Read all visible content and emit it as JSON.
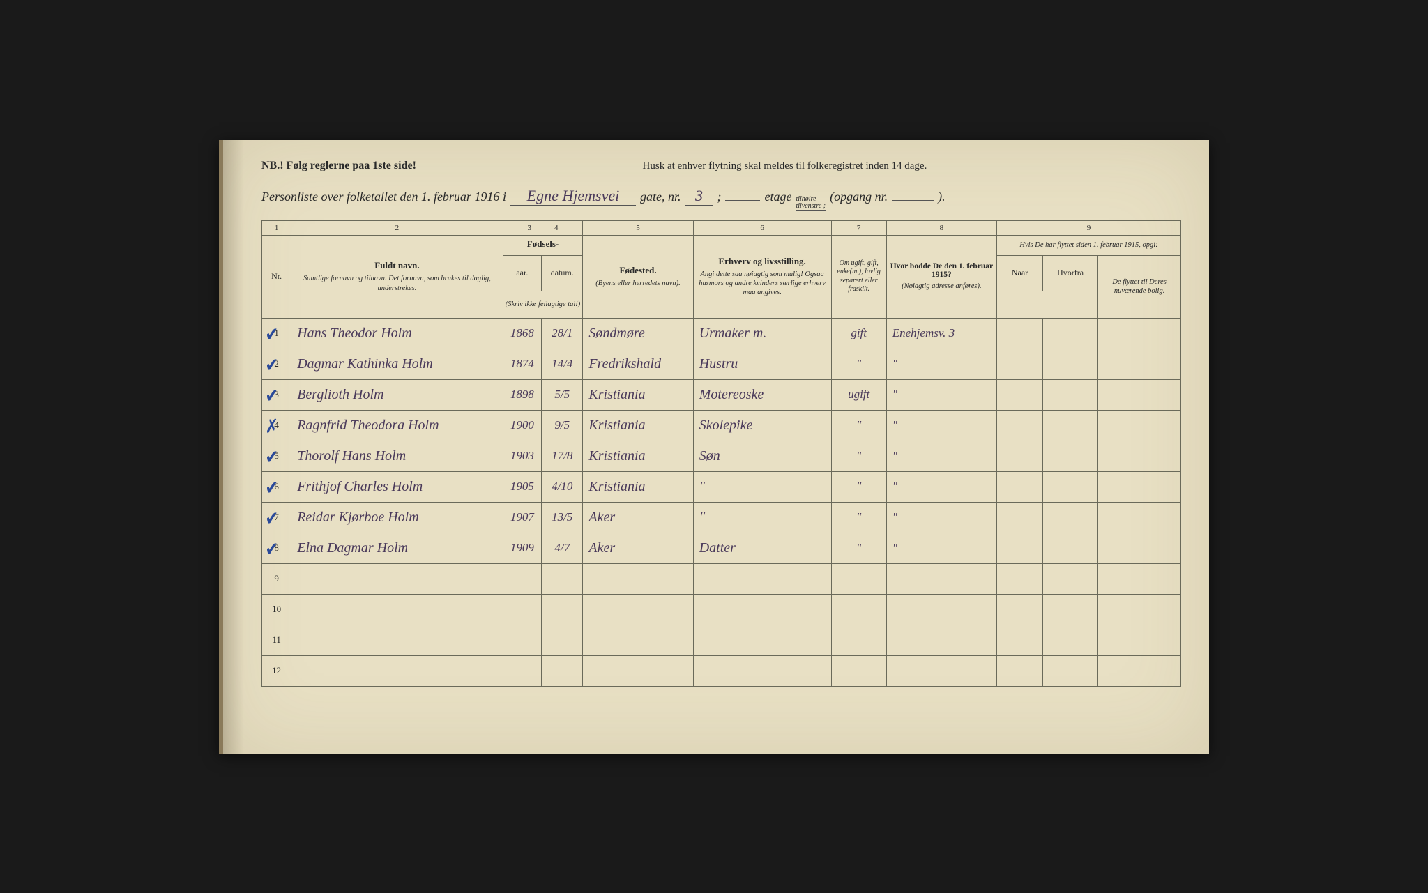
{
  "colors": {
    "paper": "#e8e0c4",
    "ink_print": "#2a2a2a",
    "ink_hand": "#4a3a5a",
    "ink_check": "#2a4a9a",
    "rule": "#6a6a5a"
  },
  "header": {
    "nb": "NB.!  Følg reglerne paa 1ste side!",
    "reminder": "Husk at enhver flytning skal meldes til folkeregistret inden 14 dage.",
    "title_prefix": "Personliste over folketallet den 1. februar 1916 i",
    "street_value": "Egne Hjemsvei",
    "gate_label": "gate, nr.",
    "nr_value": "3",
    "semicolon": ";",
    "etage_label": "etage",
    "tilhoire": "tilhøire",
    "tilvenstre": "tilvenstre ;",
    "opgang": "(opgang nr.",
    "opgang_value": "",
    "close": ")."
  },
  "column_numbers": [
    "1",
    "2",
    "3",
    "4",
    "5",
    "6",
    "7",
    "8",
    "9"
  ],
  "columns": {
    "nr": "Nr.",
    "name_main": "Fuldt navn.",
    "name_sub": "Samtlige fornavn og tilnavn. Det fornavn, som brukes til daglig, understrekes.",
    "birth_group": "Fødsels-",
    "year": "aar.",
    "date": "datum.",
    "birth_note": "(Skriv ikke feilagtige tal!)",
    "birthplace_main": "Fødested.",
    "birthplace_sub": "(Byens eller herredets navn).",
    "occ_main": "Erhverv og livsstilling.",
    "occ_sub": "Angi dette saa nøiagtig som mulig! Ogsaa husmors og andre kvinders særlige erhverv maa angives.",
    "marital": "Om ugift, gift, enke(m.), lovlig separert eller fraskilt.",
    "prev_main": "Hvor bodde De den 1. februar 1915?",
    "prev_sub": "(Nøiagtig adresse anføres).",
    "moved_top": "Hvis De har flyttet siden 1. februar 1915, opgi:",
    "moved_naar": "Naar",
    "moved_hvorfra": "Hvorfra",
    "moved_sub": "De flyttet til Deres nuværende bolig."
  },
  "rows": [
    {
      "nr": "1",
      "mark": "✓",
      "name": "Hans Theodor Holm",
      "year": "1868",
      "date": "28/1",
      "birthplace": "Søndmøre",
      "occ": "Urmaker m.",
      "marital": "gift",
      "prev": "Enehjemsv. 3",
      "m1": "",
      "m2": "",
      "m3": ""
    },
    {
      "nr": "2",
      "mark": "✓",
      "name": "Dagmar Kathinka Holm",
      "year": "1874",
      "date": "14/4",
      "birthplace": "Fredrikshald",
      "occ": "Hustru",
      "marital": "\"",
      "prev": "\"",
      "m1": "",
      "m2": "",
      "m3": ""
    },
    {
      "nr": "3",
      "mark": "✓",
      "name": "Berglioth Holm",
      "year": "1898",
      "date": "5/5",
      "birthplace": "Kristiania",
      "occ": "Motereoske",
      "marital": "ugift",
      "prev": "\"",
      "m1": "",
      "m2": "",
      "m3": ""
    },
    {
      "nr": "4",
      "mark": "✗",
      "name": "Ragnfrid Theodora Holm",
      "year": "1900",
      "date": "9/5",
      "birthplace": "Kristiania",
      "occ": "Skolepike",
      "marital": "\"",
      "prev": "\"",
      "m1": "",
      "m2": "",
      "m3": ""
    },
    {
      "nr": "5",
      "mark": "✓",
      "name": "Thorolf Hans Holm",
      "year": "1903",
      "date": "17/8",
      "birthplace": "Kristiania",
      "occ": "Søn",
      "marital": "\"",
      "prev": "\"",
      "m1": "",
      "m2": "",
      "m3": ""
    },
    {
      "nr": "6",
      "mark": "✓",
      "name": "Frithjof Charles Holm",
      "year": "1905",
      "date": "4/10",
      "birthplace": "Kristiania",
      "occ": "\"",
      "marital": "\"",
      "prev": "\"",
      "m1": "",
      "m2": "",
      "m3": ""
    },
    {
      "nr": "7",
      "mark": "✓",
      "name": "Reidar Kjørboe Holm",
      "year": "1907",
      "date": "13/5",
      "birthplace": "Aker",
      "occ": "\"",
      "marital": "\"",
      "prev": "\"",
      "m1": "",
      "m2": "",
      "m3": ""
    },
    {
      "nr": "8",
      "mark": "✓",
      "name": "Elna Dagmar Holm",
      "year": "1909",
      "date": "4/7",
      "birthplace": "Aker",
      "occ": "Datter",
      "marital": "\"",
      "prev": "\"",
      "m1": "",
      "m2": "",
      "m3": ""
    },
    {
      "nr": "9",
      "mark": "",
      "name": "",
      "year": "",
      "date": "",
      "birthplace": "",
      "occ": "",
      "marital": "",
      "prev": "",
      "m1": "",
      "m2": "",
      "m3": ""
    },
    {
      "nr": "10",
      "mark": "",
      "name": "",
      "year": "",
      "date": "",
      "birthplace": "",
      "occ": "",
      "marital": "",
      "prev": "",
      "m1": "",
      "m2": "",
      "m3": ""
    },
    {
      "nr": "11",
      "mark": "",
      "name": "",
      "year": "",
      "date": "",
      "birthplace": "",
      "occ": "",
      "marital": "",
      "prev": "",
      "m1": "",
      "m2": "",
      "m3": ""
    },
    {
      "nr": "12",
      "mark": "",
      "name": "",
      "year": "",
      "date": "",
      "birthplace": "",
      "occ": "",
      "marital": "",
      "prev": "",
      "m1": "",
      "m2": "",
      "m3": ""
    }
  ]
}
